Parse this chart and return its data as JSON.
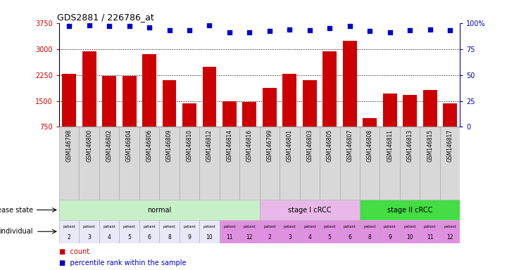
{
  "title": "GDS2881 / 226786_at",
  "samples": [
    "GSM146798",
    "GSM146800",
    "GSM146802",
    "GSM146804",
    "GSM146806",
    "GSM146809",
    "GSM146810",
    "GSM146812",
    "GSM146814",
    "GSM146816",
    "GSM146799",
    "GSM146801",
    "GSM146803",
    "GSM146805",
    "GSM146807",
    "GSM146808",
    "GSM146811",
    "GSM146813",
    "GSM146815",
    "GSM146817"
  ],
  "counts": [
    2280,
    2930,
    2230,
    2230,
    2840,
    2090,
    1430,
    2480,
    1490,
    1480,
    1880,
    2280,
    2090,
    2940,
    3240,
    1000,
    1720,
    1680,
    1820,
    1430
  ],
  "percentile_ranks": [
    97,
    98,
    97,
    97,
    96,
    93,
    93,
    98,
    91,
    91,
    92,
    94,
    93,
    95,
    97,
    92,
    91,
    93,
    94,
    93
  ],
  "disease_groups": [
    {
      "label": "normal",
      "start": 0,
      "end": 9,
      "color": "#c8f0c8"
    },
    {
      "label": "stage I cRCC",
      "start": 10,
      "end": 14,
      "color": "#e8b8e8"
    },
    {
      "label": "stage II cRCC",
      "start": 15,
      "end": 19,
      "color": "#44dd44"
    }
  ],
  "patient_numbers": [
    2,
    3,
    4,
    5,
    6,
    8,
    9,
    10,
    11,
    12,
    2,
    3,
    4,
    5,
    6,
    8,
    9,
    10,
    11,
    12
  ],
  "patient_colors": [
    "#e8e8f8",
    "#e8e8f8",
    "#e8e8f8",
    "#e8e8f8",
    "#e8e8f8",
    "#e8e8f8",
    "#e8e8f8",
    "#e8e8f8",
    "#e090e0",
    "#e090e0",
    "#e090e0",
    "#e090e0",
    "#e090e0",
    "#e090e0",
    "#e090e0",
    "#e090e0",
    "#e090e0",
    "#e090e0",
    "#e090e0",
    "#e090e0"
  ],
  "bar_color": "#cc0000",
  "dot_color": "#0000cc",
  "ylim_left": [
    750,
    3750
  ],
  "yticks_left": [
    750,
    1500,
    2250,
    3000,
    3750
  ],
  "ylim_right": [
    0,
    100
  ],
  "yticks_right": [
    0,
    25,
    50,
    75,
    100
  ],
  "dotted_lines": [
    1500,
    2250,
    3000
  ],
  "bar_width": 0.7,
  "sample_box_color": "#d8d8d8"
}
